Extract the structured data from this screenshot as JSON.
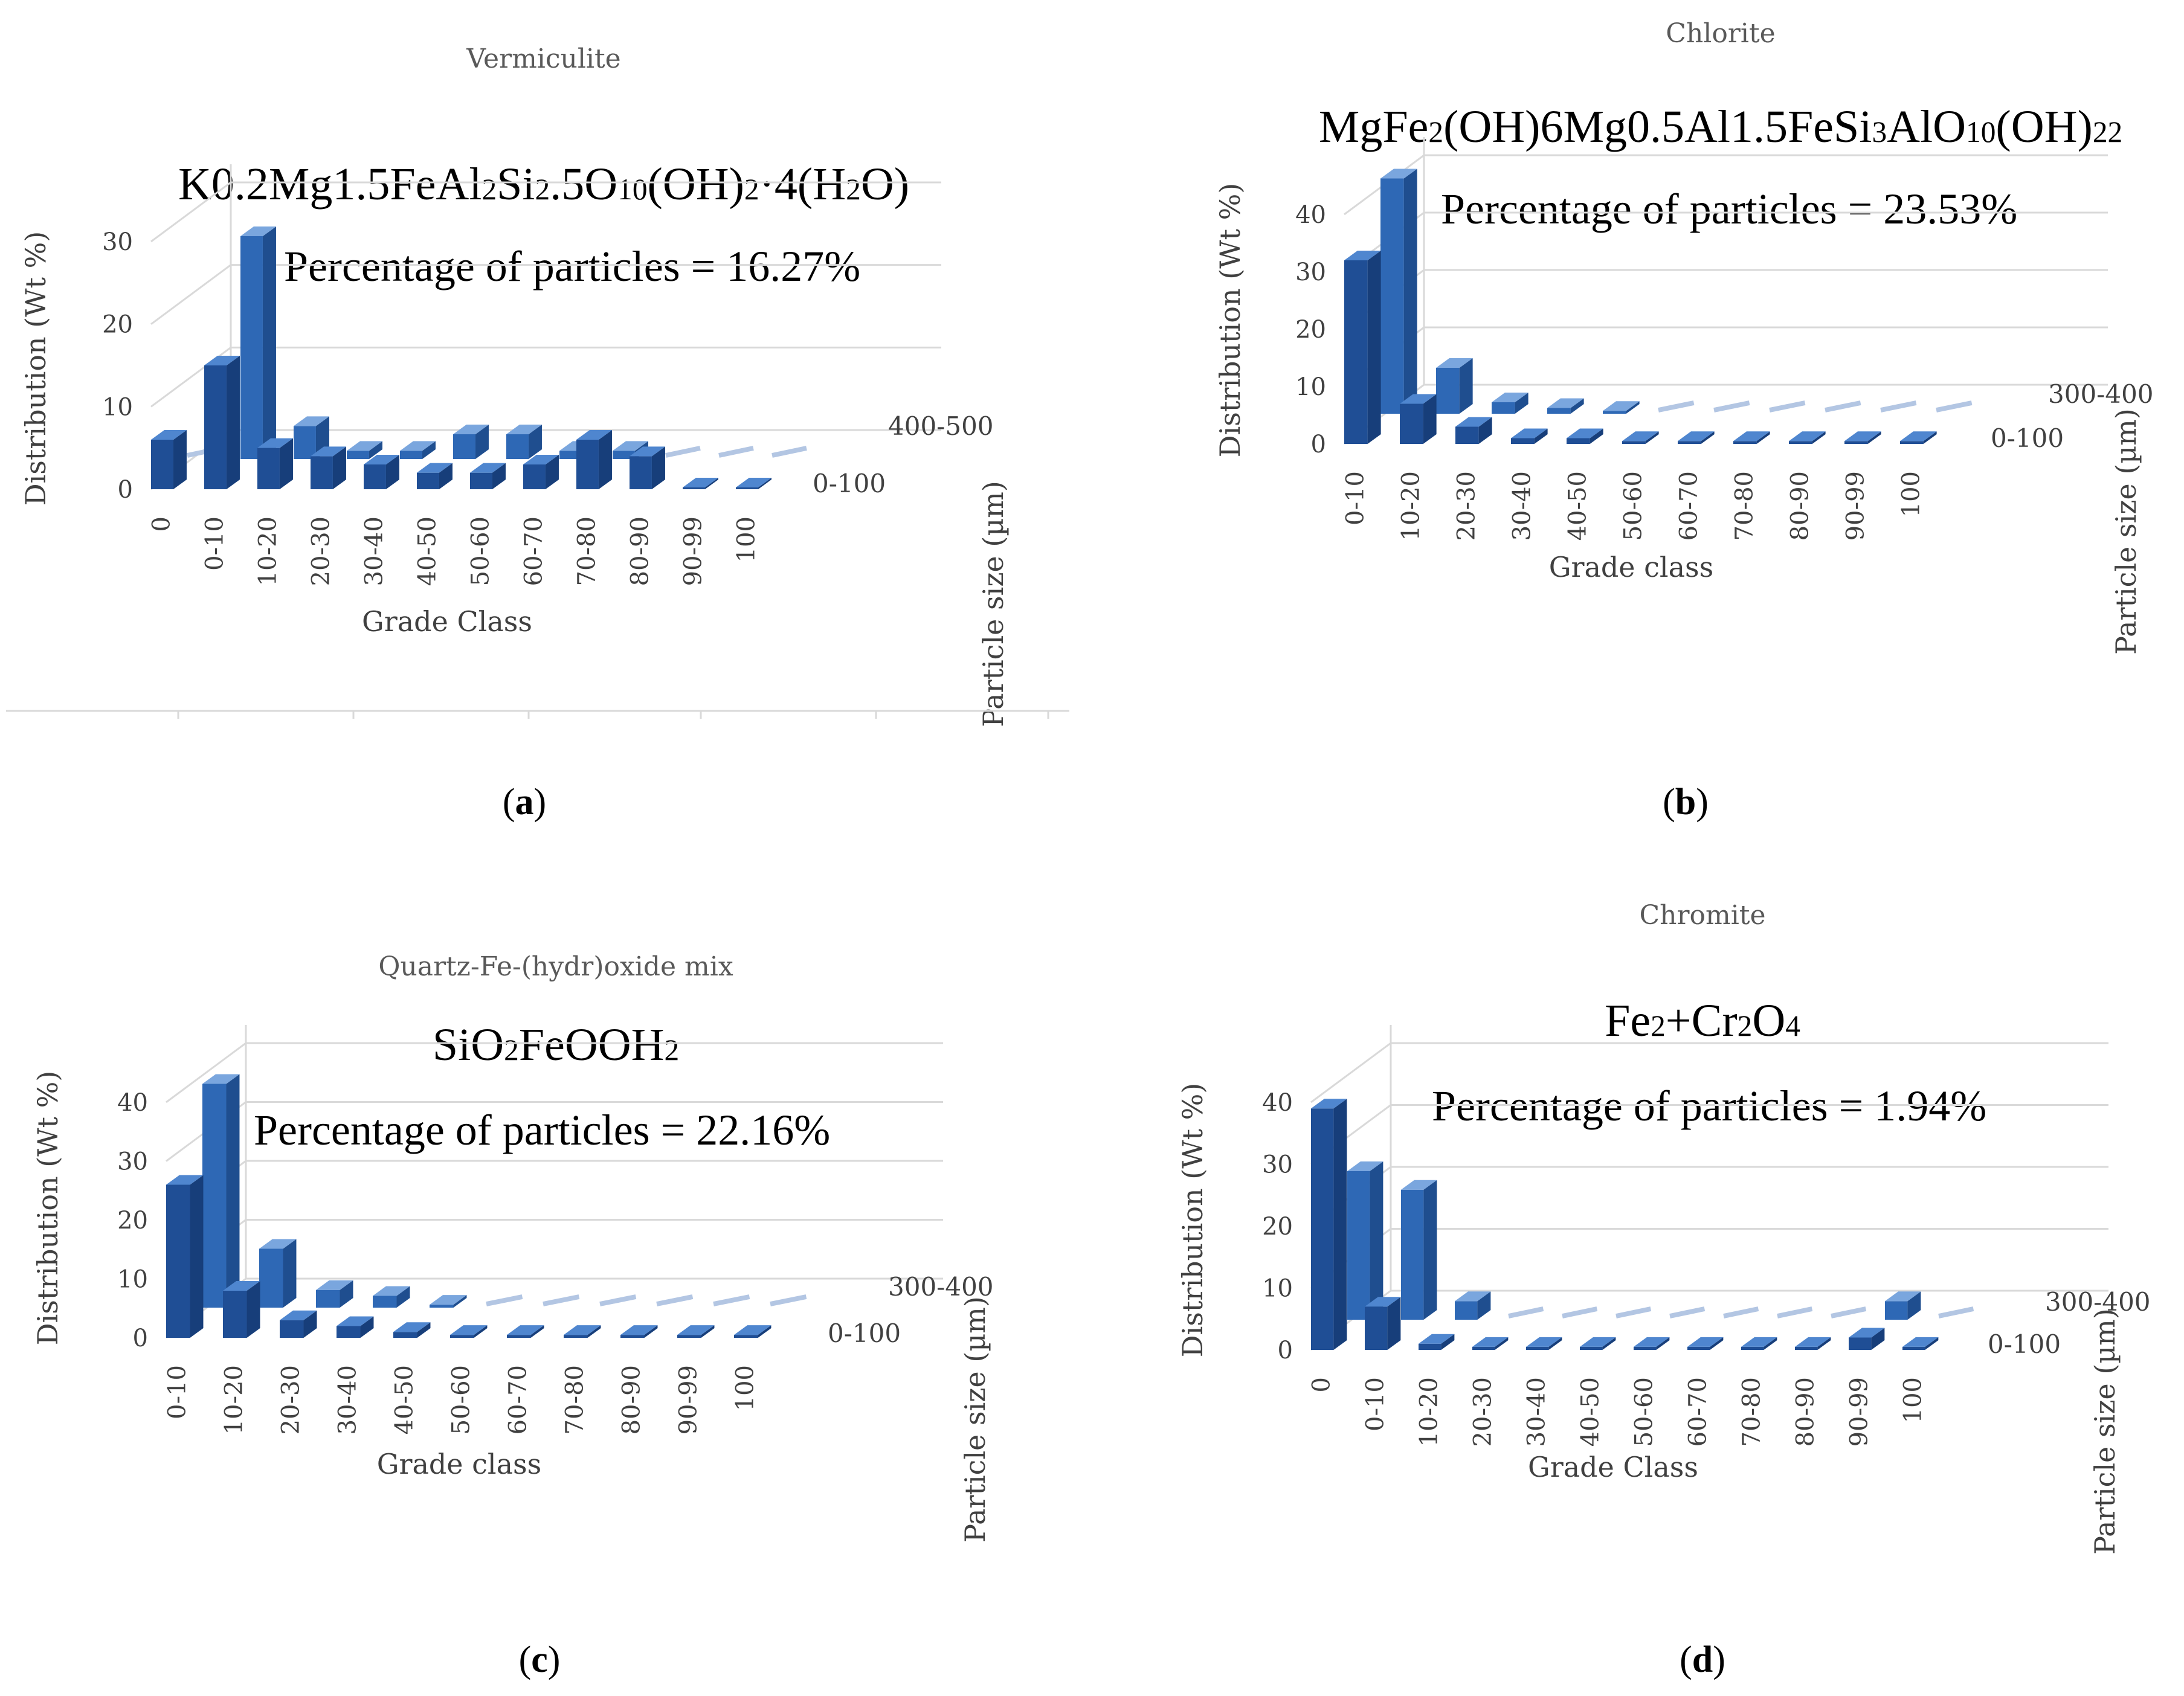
{
  "colors": {
    "front": "#1f4e95",
    "front_dark": "#163b73",
    "front_side": "#173e7a",
    "front_top": "#4f86cf",
    "back": "#2e68b5",
    "back_side": "#1f4e8f",
    "back_top": "#7aa6de",
    "flat_back": "#b3c6e3",
    "grid": "#d9d9d9"
  },
  "chart_data": [
    {
      "type": "bar3d",
      "panel": "(a)",
      "panel_letter": "a",
      "title": "Vermiculite",
      "formula": [
        {
          "t": "K0.2Mg1.5FeAl"
        },
        {
          "t": "2",
          "sub": true
        },
        {
          "t": "Si"
        },
        {
          "t": "2",
          "sub": true
        },
        {
          "t": ".5O"
        },
        {
          "t": "10",
          "sub": true
        },
        {
          "t": "(OH)"
        },
        {
          "t": "2",
          "sub": true
        },
        {
          "t": "·4(H"
        },
        {
          "t": "2",
          "sub": true
        },
        {
          "t": "O)"
        }
      ],
      "percentage_text": "Percentage of particles = 16.27%",
      "xlabel": "Grade Class",
      "ylabel": "Distribution (Wt %)",
      "zlabel": "Particle size (µm)",
      "yticks": [
        "0",
        "10",
        "20",
        "30"
      ],
      "ylim": [
        0,
        30
      ],
      "categories": [
        "0",
        "0-10",
        "10-20",
        "20-30",
        "30-40",
        "40-50",
        "50-60",
        "60-70",
        "70-80",
        "80-90",
        "90-99",
        "100"
      ],
      "series": [
        {
          "name": "0-100",
          "values": [
            6,
            15,
            5,
            4,
            3,
            2,
            2,
            3,
            6,
            4,
            0,
            0
          ]
        },
        {
          "name": "400-500",
          "values": [
            0,
            27,
            4,
            1,
            1,
            3,
            3,
            1,
            1,
            0,
            0,
            0
          ]
        }
      ]
    },
    {
      "type": "bar3d",
      "panel": "(b)",
      "panel_letter": "b",
      "title": "Chlorite",
      "formula": [
        {
          "t": "MgFe"
        },
        {
          "t": "2",
          "sub": true
        },
        {
          "t": "(OH)6Mg0.5Al1.5FeSi"
        },
        {
          "t": "3",
          "sub": true
        },
        {
          "t": "AlO"
        },
        {
          "t": "10",
          "sub": true
        },
        {
          "t": "(OH)"
        },
        {
          "t": "22",
          "sub": true
        }
      ],
      "percentage_text": "Percentage of particles = 23.53%",
      "xlabel": "Grade class",
      "ylabel": "Distribution (Wt %)",
      "zlabel": "Particle size (µm)",
      "yticks": [
        "0",
        "10",
        "20",
        "30",
        "40"
      ],
      "ylim": [
        0,
        40
      ],
      "categories": [
        "0-10",
        "10-20",
        "20-30",
        "30-40",
        "40-50",
        "50-60",
        "60-70",
        "70-80",
        "80-90",
        "90-99",
        "100"
      ],
      "series": [
        {
          "name": "0-100",
          "values": [
            32,
            7,
            3,
            1,
            1,
            0.5,
            0.5,
            0.5,
            0.5,
            0.5,
            0.5
          ]
        },
        {
          "name": "300-400",
          "values": [
            41,
            8,
            2,
            1,
            0.5,
            0,
            0,
            0,
            0,
            0,
            0
          ]
        }
      ]
    },
    {
      "type": "bar3d",
      "panel": "(c)",
      "panel_letter": "c",
      "title": "Quartz-Fe-(hydr)oxide mix",
      "formula": [
        {
          "t": "SiO"
        },
        {
          "t": "2",
          "sub": true
        },
        {
          "t": "FeOOH"
        },
        {
          "t": "2",
          "sub": true
        }
      ],
      "percentage_text": "Percentage of particles = 22.16%",
      "xlabel": "Grade class",
      "ylabel": "Distribution (Wt %)",
      "zlabel": "Particle size (µm)",
      "yticks": [
        "0",
        "10",
        "20",
        "30",
        "40"
      ],
      "ylim": [
        0,
        40
      ],
      "categories": [
        "0-10",
        "10-20",
        "20-30",
        "30-40",
        "40-50",
        "50-60",
        "60-70",
        "70-80",
        "80-90",
        "90-99",
        "100"
      ],
      "series": [
        {
          "name": "0-100",
          "values": [
            26,
            8,
            3,
            2,
            1,
            0.5,
            0.5,
            0.5,
            0.5,
            0.5,
            0.5
          ]
        },
        {
          "name": "300-400",
          "values": [
            38,
            10,
            3,
            2,
            0.5,
            0,
            0,
            0,
            0,
            0,
            0
          ]
        }
      ]
    },
    {
      "type": "bar3d",
      "panel": "(d)",
      "panel_letter": "d",
      "title": "Chromite",
      "formula": [
        {
          "t": "Fe"
        },
        {
          "t": "2",
          "sub": true
        },
        {
          "t": "+Cr"
        },
        {
          "t": "2",
          "sub": true
        },
        {
          "t": "O"
        },
        {
          "t": "4",
          "sub": true
        }
      ],
      "percentage_text": "Percentage of particles = 1.94%",
      "xlabel": "Grade Class",
      "ylabel": "Distribution (Wt %)",
      "zlabel": "Particle size (µm)",
      "yticks": [
        "0",
        "10",
        "20",
        "30",
        "40"
      ],
      "ylim": [
        0,
        40
      ],
      "categories": [
        "0",
        "0-10",
        "10-20",
        "20-30",
        "30-40",
        "40-50",
        "50-60",
        "60-70",
        "70-80",
        "80-90",
        "90-99",
        "100"
      ],
      "series": [
        {
          "name": "0-100",
          "values": [
            39,
            7,
            1,
            0.5,
            0.5,
            0.5,
            0.5,
            0.5,
            0.5,
            0.5,
            2,
            0.5
          ]
        },
        {
          "name": "300-400",
          "values": [
            24,
            21,
            3,
            0,
            0,
            0,
            0,
            0,
            0,
            0,
            3,
            0
          ]
        }
      ]
    }
  ]
}
